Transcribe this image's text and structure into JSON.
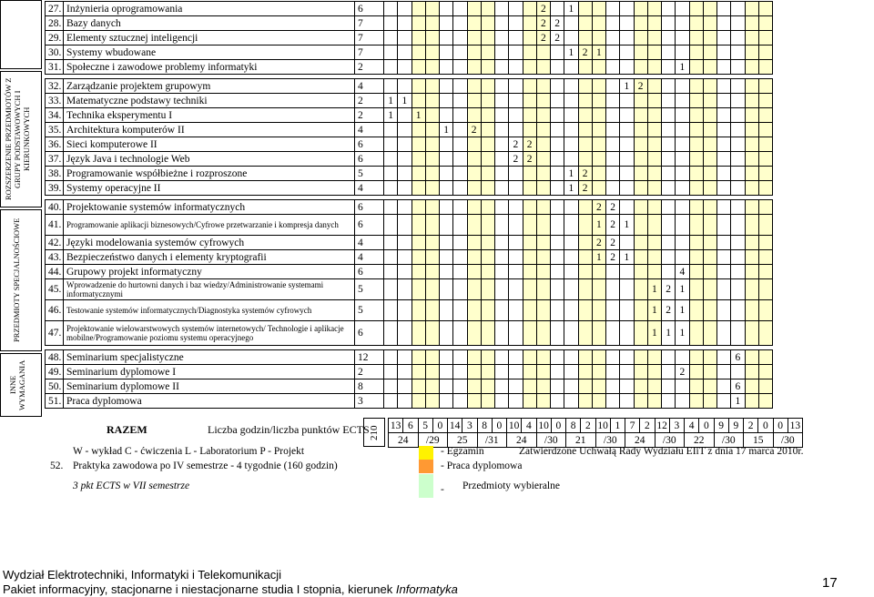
{
  "group_labels": {
    "extended": "ROZSZERZENIE PRZEDMIOTÓW Z GRUPY PODSTAWOWYCH I KIERUNKOWYCH",
    "specialty": "PRZEDMIOTY SPECJALNOŚCIOWE",
    "other": "INNE WYMAGANIA"
  },
  "courses": [
    {
      "no": "27.",
      "name": "Inżynieria oprogramowania",
      "ects": "6",
      "cells": {
        "11": "2",
        "13": "1"
      }
    },
    {
      "no": "28.",
      "name": "Bazy danych",
      "ects": "7",
      "cells": {
        "11": "2",
        "12": "2"
      }
    },
    {
      "no": "29.",
      "name": "Elementy sztucznej inteligencji",
      "ects": "7",
      "cells": {
        "11": "2",
        "12": "2"
      }
    },
    {
      "no": "30.",
      "name": "Systemy wbudowane",
      "ects": "7",
      "cells": {
        "13": "1",
        "14": "2",
        "15": "1"
      }
    },
    {
      "no": "31.",
      "name": "Społeczne i zawodowe problemy informatyki",
      "ects": "2",
      "cells": {
        "21": "1"
      }
    },
    {
      "no": "32.",
      "name": "Zarządzanie projektem grupowym",
      "ects": "4",
      "cells": {
        "17": "1",
        "18": "2"
      }
    },
    {
      "no": "33.",
      "name": "Matematyczne podstawy techniki",
      "ects": "2",
      "cells": {
        "0": "1",
        "1": "1"
      }
    },
    {
      "no": "34.",
      "name": "Technika eksperymentu I",
      "ects": "2",
      "cells": {
        "0": "1",
        "2": "1"
      }
    },
    {
      "no": "35.",
      "name": "Architektura komputerów II",
      "ects": "4",
      "cells": {
        "4": "1",
        "6": "2"
      }
    },
    {
      "no": "36.",
      "name": "Sieci komputerowe II",
      "ects": "6",
      "cells": {
        "9": "2",
        "10": "2"
      }
    },
    {
      "no": "37.",
      "name": "Język Java i technologie Web",
      "ects": "6",
      "cells": {
        "9": "2",
        "10": "2"
      }
    },
    {
      "no": "38.",
      "name": "Programowanie współbieżne i rozproszone",
      "ects": "5",
      "cells": {
        "13": "1",
        "14": "2"
      }
    },
    {
      "no": "39.",
      "name": "Systemy operacyjne II",
      "ects": "4",
      "cells": {
        "13": "1",
        "14": "2"
      }
    },
    {
      "no": "40.",
      "name": "Projektowanie systemów informatycznych",
      "ects": "6",
      "cells": {
        "15": "2",
        "16": "2"
      }
    },
    {
      "no": "41.",
      "name": "Programowanie aplikacji biznesowych/Cyfrowe przetwarzanie i kompresja danych",
      "small": true,
      "ects": "6",
      "cells": {
        "15": "1",
        "16": "2",
        "17": "1"
      }
    },
    {
      "no": "42.",
      "name": "Języki modelowania systemów cyfrowych",
      "ects": "4",
      "cells": {
        "15": "2",
        "16": "2"
      }
    },
    {
      "no": "43.",
      "name": "Bezpieczeństwo danych i elementy kryptografii",
      "ects": "4",
      "cells": {
        "15": "1",
        "16": "2",
        "17": "1"
      }
    },
    {
      "no": "44.",
      "name": "Grupowy projekt informatyczny",
      "ects": "6",
      "cells": {
        "21": "4"
      }
    },
    {
      "no": "45.",
      "name": "Wprowadzenie do hurtowni danych i baz wiedzy/Administrowanie systemami informatycznymi",
      "small": true,
      "ects": "5",
      "cells": {
        "19": "1",
        "20": "2",
        "21": "1"
      }
    },
    {
      "no": "46.",
      "name": "Testowanie systemów informatycznych/Diagnostyka systemów cyfrowych",
      "small": true,
      "ects": "5",
      "cells": {
        "19": "1",
        "20": "2",
        "21": "1"
      }
    },
    {
      "no": "47.",
      "name": "Projektowanie wielowarstwowych systemów internetowych/ Technologie i aplikacje mobilne/Programowanie poziomu systemu operacyjnego",
      "small": true,
      "ects": "6",
      "cells": {
        "19": "1",
        "20": "1",
        "21": "1"
      }
    },
    {
      "no": "48.",
      "name": "Seminarium specjalistyczne",
      "ects": "12",
      "cells": {
        "25": "6"
      }
    },
    {
      "no": "49.",
      "name": "Seminarium dyplomowe I",
      "ects": "2",
      "cells": {
        "21": "2"
      }
    },
    {
      "no": "50.",
      "name": "Seminarium dyplomowe II",
      "ects": "8",
      "cells": {
        "25": "6"
      }
    },
    {
      "no": "51.",
      "name": "Praca dyplomowa",
      "ects": "3",
      "cells": {
        "25": "1"
      }
    }
  ],
  "summary": {
    "label": "RAZEM",
    "hours_label": "Liczba godzin/liczba punktów ECTS",
    "total": "210",
    "hours": [
      "13",
      "6",
      "5",
      "0",
      "14",
      "3",
      "8",
      "0",
      "10",
      "4",
      "10",
      "0",
      "8",
      "2",
      "10",
      "1",
      "7",
      "2",
      "12",
      "3",
      "4",
      "0",
      "9",
      "9",
      "2",
      "0",
      "0",
      "13"
    ],
    "ects": [
      "24",
      "/29",
      "25",
      "/31",
      "24",
      "/30",
      "21",
      "/30",
      "24",
      "/30",
      "22",
      "/30",
      "15",
      "/30"
    ]
  },
  "legend": {
    "types": "W - wykład  C - ćwiczenia  L - Laboratorium  P - Projekt",
    "practice_no": "52.",
    "practice": "Praktyka zawodowa po IV semestrze - 4 tygodnie (160 godzin)",
    "ects_note": "3 pkt ECTS w VII semestrze",
    "exam": "- Egzamin",
    "thesis": "- Praca dyplomowa",
    "elective_dash": "-",
    "elective": "Przedmioty wybieralne",
    "approved": "Zatwierdzone Uchwałą Rady Wydziału EIiT z dnia 17 marca 2010r.",
    "exam_color": "#fff200",
    "thesis_color": "#ff9933",
    "elective_color": "#ccffcc"
  },
  "footer": {
    "faculty": "Wydział Elektrotechniki, Informatyki i Telekomunikacji",
    "program": "Pakiet informacyjny, stacjonarne i niestacjonarne studia I stopnia, kierunek ",
    "program_italic": "Informatyka",
    "page": "17"
  }
}
